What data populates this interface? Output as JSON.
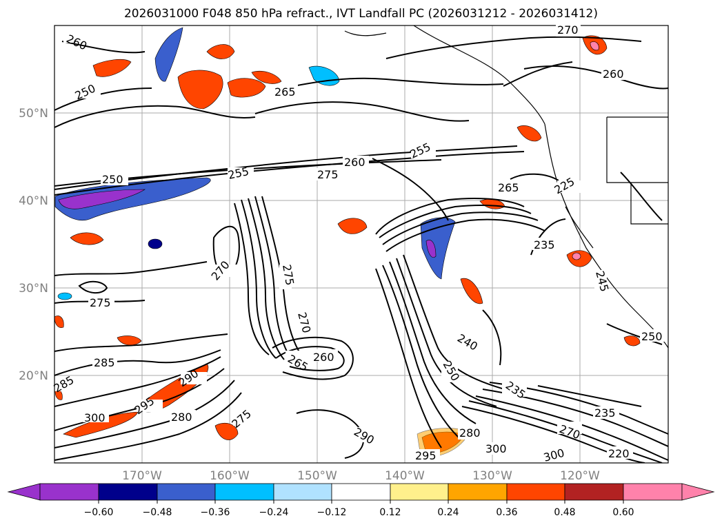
{
  "title": "2026031000 F048 850 hPa refract., IVT Landfall PC (2026031212 - 2026031412)",
  "map": {
    "lat_labels": [
      "50°N",
      "40°N",
      "30°N",
      "20°N"
    ],
    "lon_labels": [
      "170°W",
      "160°W",
      "150°W",
      "140°W",
      "130°W",
      "120°W"
    ],
    "contour_labels": [
      "260",
      "250",
      "265",
      "270",
      "260",
      "250",
      "255",
      "260",
      "275",
      "255",
      "265",
      "225",
      "235",
      "245",
      "270",
      "275",
      "270",
      "275",
      "285",
      "285",
      "290",
      "295",
      "300",
      "280",
      "275",
      "260",
      "265",
      "240",
      "250",
      "235",
      "235",
      "280",
      "290",
      "295",
      "300",
      "300",
      "270",
      "220",
      "250"
    ]
  },
  "colorbar": {
    "tick_labels": [
      "−0.60",
      "−0.48",
      "−0.36",
      "−0.24",
      "−0.12",
      "0.12",
      "0.24",
      "0.36",
      "0.48",
      "0.60"
    ],
    "colors": [
      "#9932cc",
      "#00008b",
      "#3a5fcd",
      "#00bfff",
      "#b0e2ff",
      "#ffffff",
      "#fff08c",
      "#ffa500",
      "#ff4500",
      "#b22222",
      "#ff82ab"
    ],
    "extend": "both"
  }
}
